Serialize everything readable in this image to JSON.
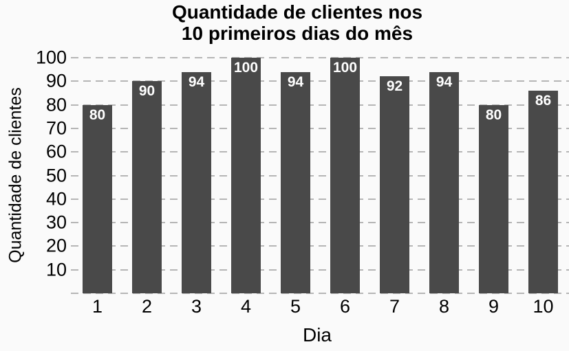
{
  "chart_data": {
    "type": "bar",
    "title": "Quantidade de clientes nos 10 primeiros dias do mês",
    "title_lines": [
      "Quantidade de clientes nos",
      "10 primeiros dias do mês"
    ],
    "xlabel": "Dia",
    "ylabel": "Quantidade de clientes",
    "categories": [
      "1",
      "2",
      "3",
      "4",
      "5",
      "6",
      "7",
      "8",
      "9",
      "10"
    ],
    "values": [
      80,
      90,
      94,
      100,
      94,
      100,
      92,
      94,
      80,
      86
    ],
    "yticks": [
      10,
      20,
      30,
      40,
      50,
      60,
      70,
      80,
      90,
      100
    ],
    "ylim": [
      0,
      100
    ],
    "grid": "horizontal-dashed",
    "legend": "none",
    "colors": {
      "bar": "#494949",
      "value_label": "#ffffff",
      "gridline": "#b5b5b5",
      "text": "#000000",
      "background": "#fafafa"
    }
  }
}
